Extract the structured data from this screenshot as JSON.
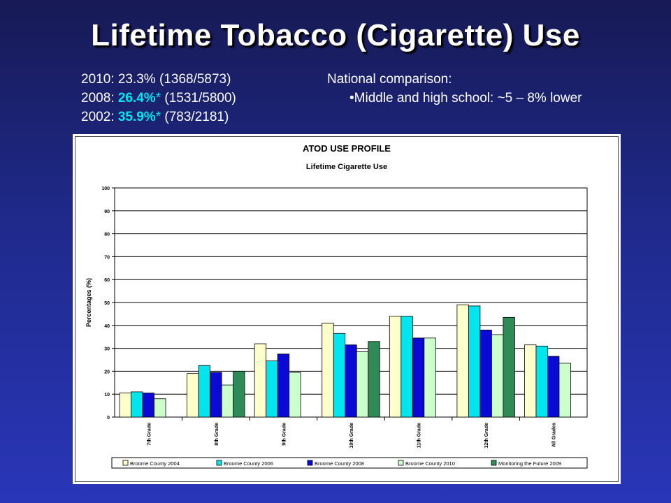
{
  "slide": {
    "title": "Lifetime Tobacco (Cigarette) Use",
    "stats": [
      {
        "prefix": "2010: ",
        "value": "23.3%",
        "star": "",
        "detail": " (1368/5873)",
        "highlight": false
      },
      {
        "prefix": "2008: ",
        "value": "26.4%",
        "star": "*",
        "detail": " (1531/5800)",
        "highlight": true
      },
      {
        "prefix": "2002: ",
        "value": "35.9%",
        "star": "*",
        "detail": " (783/2181)",
        "highlight": true
      }
    ],
    "national": {
      "heading": "National comparison:",
      "item": "•Middle and high school: ~5 – 8% lower"
    }
  },
  "chart_data": {
    "type": "bar",
    "title": "ATOD USE PROFILE",
    "subtitle": "Lifetime Cigarette Use",
    "ylabel": "Percentages (%)",
    "xlabel": "",
    "ylim": [
      0,
      100
    ],
    "yticks": [
      0,
      10,
      20,
      30,
      40,
      50,
      60,
      70,
      80,
      90,
      100
    ],
    "grid": true,
    "legend_position": "bottom",
    "categories": [
      "7th Grade",
      "8th Grade",
      "9th Grade",
      "10th Grade",
      "11th Grade",
      "12th Grade",
      "All Grades"
    ],
    "series": [
      {
        "name": "Broome County 2004",
        "color": "#ffffcc",
        "values": [
          10.5,
          19,
          32,
          41,
          44,
          49,
          31.5
        ]
      },
      {
        "name": "Broome County 2006",
        "color": "#00e5ee",
        "values": [
          11,
          22.5,
          24.5,
          36.5,
          44,
          48.5,
          31
        ]
      },
      {
        "name": "Broome County 2008",
        "color": "#0a0ad4",
        "values": [
          10.5,
          19.5,
          27.5,
          31.5,
          34.5,
          38,
          26.5
        ]
      },
      {
        "name": "Broome County 2010",
        "color": "#ccffcc",
        "values": [
          8,
          14,
          19.5,
          28.5,
          34.5,
          36,
          23.5
        ]
      },
      {
        "name": "Monitoring the Future 2009",
        "color": "#2e8b57",
        "values": [
          null,
          20,
          null,
          33,
          null,
          43.5,
          null
        ]
      }
    ]
  }
}
